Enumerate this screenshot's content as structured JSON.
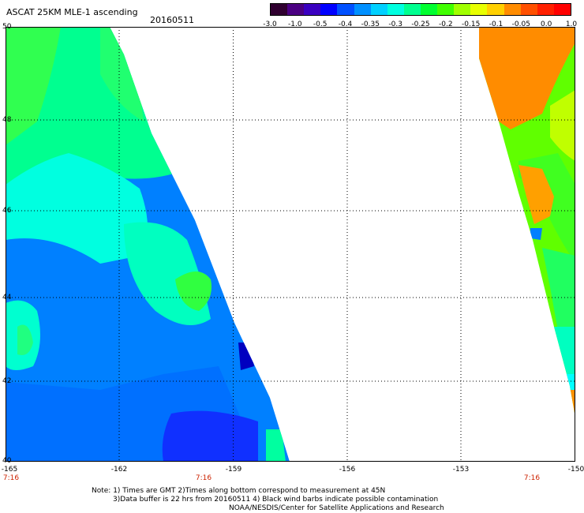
{
  "header": {
    "title": "ASCAT 25KM MLE-1 ascending",
    "date": "20160511"
  },
  "colorbar": {
    "ticks": [
      "-3.0",
      "-1.0",
      "-0.5",
      "-0.4",
      "-0.35",
      "-0.3",
      "-0.25",
      "-0.2",
      "-0.15",
      "-0.1",
      "-0.05",
      "0.0",
      "1.0"
    ],
    "colors": [
      "#300030",
      "#4b0082",
      "#3a00c0",
      "#0000ff",
      "#0050ff",
      "#0090ff",
      "#00d0ff",
      "#00ffe0",
      "#00ff90",
      "#00ff30",
      "#40ff00",
      "#a0ff00",
      "#e8ff00",
      "#ffd000",
      "#ff8c00",
      "#ff5000",
      "#ff2000",
      "#ff0000"
    ]
  },
  "map": {
    "lat_labels": [
      "50",
      "48",
      "46",
      "44",
      "42",
      "40"
    ],
    "lon_labels": [
      "-165",
      "-162",
      "-159",
      "-156",
      "-153",
      "-150"
    ],
    "time_labels": [
      "7:16",
      "7:16",
      "7:16"
    ]
  },
  "notes": {
    "line1": "Note: 1) Times are GMT 2)Times along bottom correspond to measurement at 45N",
    "line2": "3)Data buffer is 22 hrs from 20160511 4) Black wind barbs indicate possible contamination",
    "line3": "NOAA/NESDIS/Center for Satellite Applications and Research"
  },
  "chart_data": {
    "type": "heatmap",
    "title": "ASCAT 25KM MLE-1 ascending",
    "subtitle": "20160511",
    "x_range": [
      -165,
      -150
    ],
    "y_range": [
      40,
      50
    ],
    "x_ticks": [
      -165,
      -162,
      -159,
      -156,
      -153,
      -150
    ],
    "y_ticks": [
      50,
      48,
      46,
      44,
      42,
      40
    ],
    "color_scale_ticks": [
      -3.0,
      -1.0,
      -0.5,
      -0.4,
      -0.35,
      -0.3,
      -0.25,
      -0.2,
      -0.15,
      -0.1,
      -0.05,
      0.0,
      1.0
    ],
    "grid": true,
    "swaths": [
      {
        "region": "western swath",
        "value_range": [
          -0.4,
          -0.15
        ],
        "dominant_value": -0.4,
        "edge_values": [
          -0.3,
          -0.2
        ]
      },
      {
        "region": "eastern swath",
        "value_range": [
          -0.3,
          0.0
        ],
        "dominant_value": -0.05,
        "edge_values": [
          -0.2,
          -0.15
        ]
      }
    ]
  }
}
